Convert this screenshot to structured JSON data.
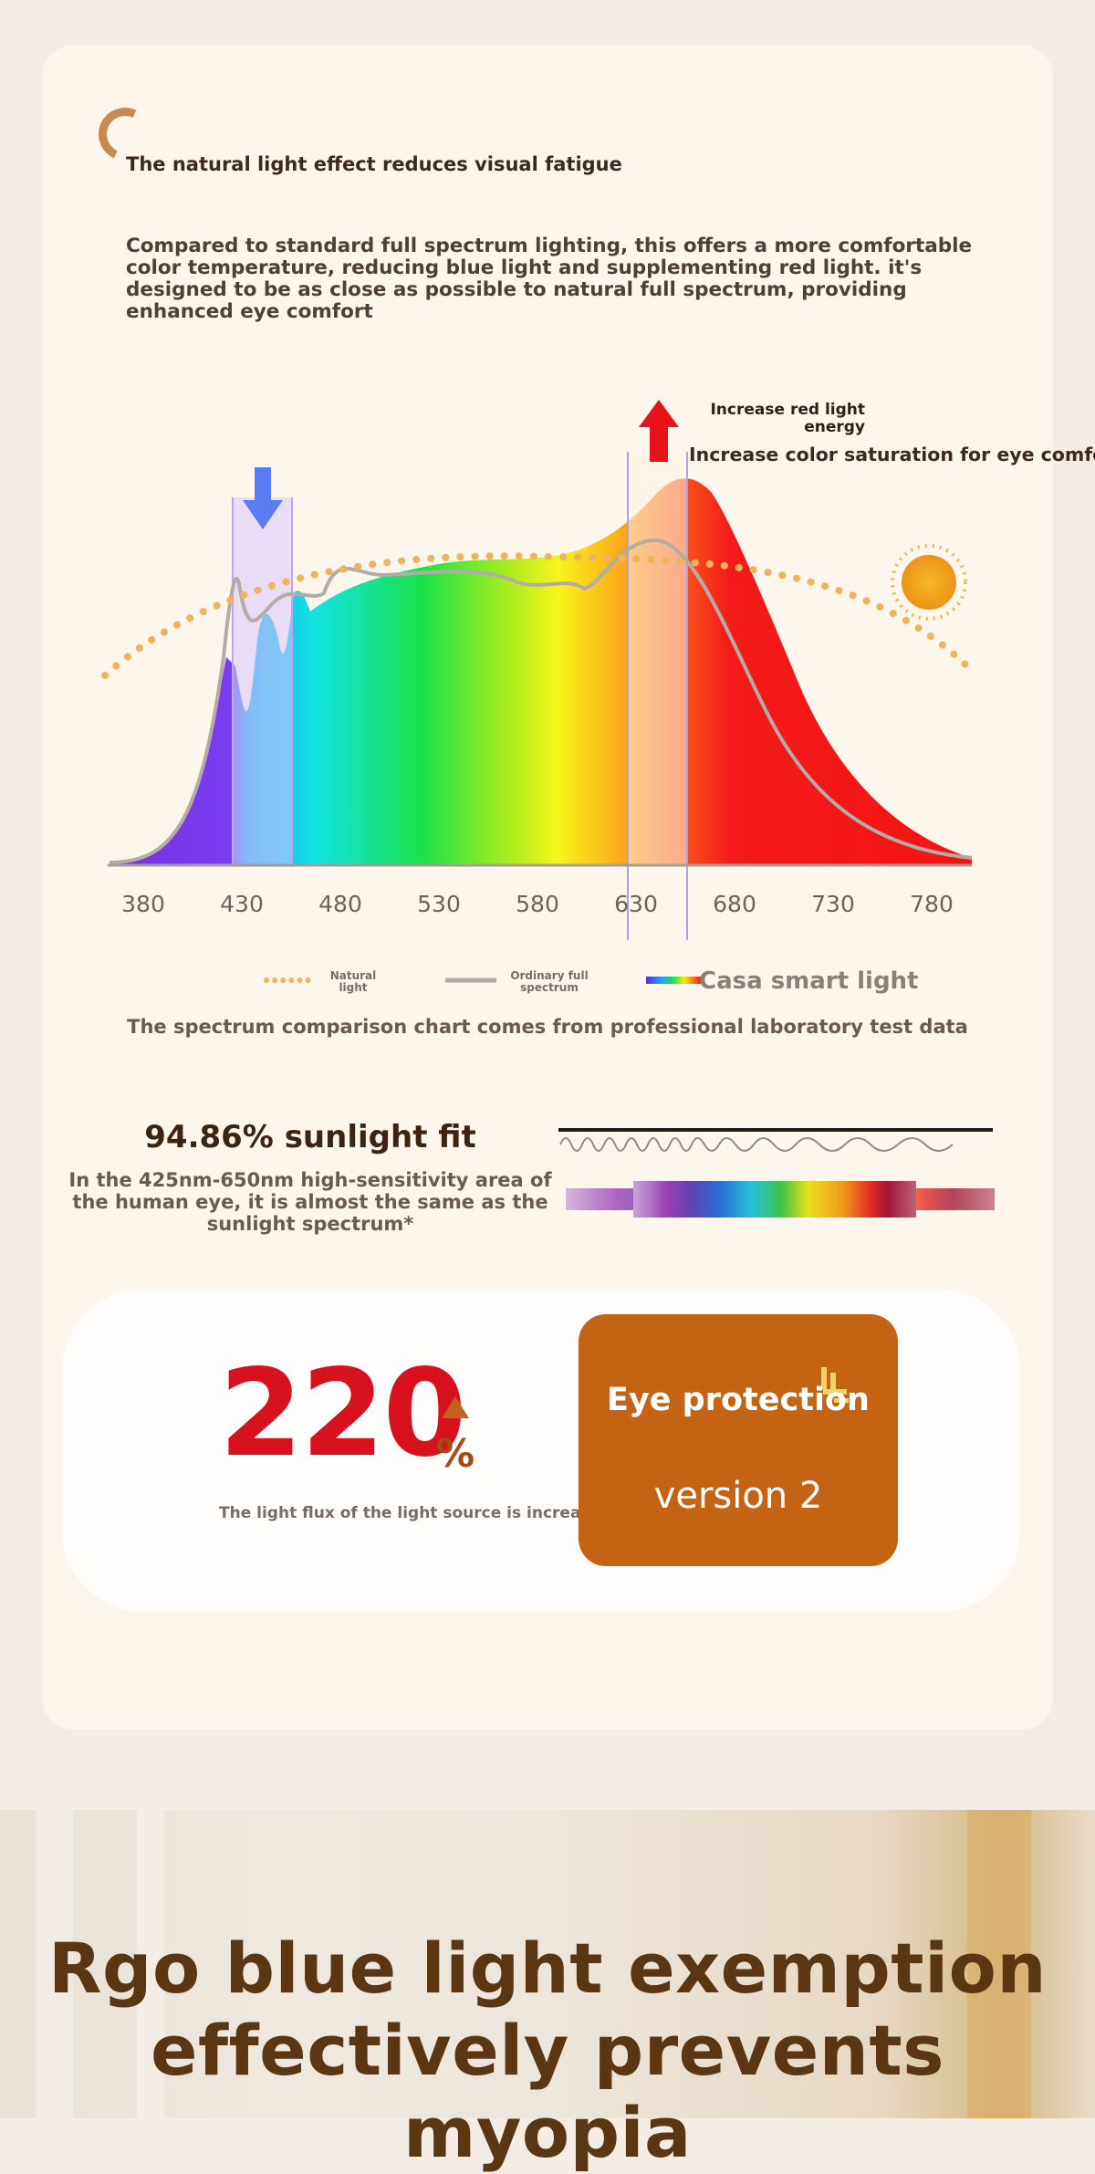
{
  "header": {
    "headline": "The natural light effect reduces visual fatigue",
    "subtext": "Compared to standard full spectrum lighting, this offers a more comfortable color temperature, reducing blue light and supplementing red light. it's designed to be as close as possible to natural full spectrum, providing enhanced eye comfort"
  },
  "chart_annotations": {
    "red_light": "Increase red light energy",
    "saturation": "Increase color saturation for eye comfort"
  },
  "chart_data": {
    "type": "area",
    "x_ticks": [
      "380",
      "430",
      "480",
      "530",
      "580",
      "630",
      "680",
      "730",
      "780"
    ],
    "legend": [
      {
        "label": "Natural light",
        "style": "dotted",
        "color": "#f0b35c"
      },
      {
        "label": "Ordinary full spectrum",
        "style": "solid",
        "color": "#b3aca6"
      },
      {
        "label": "Casa smart light",
        "style": "rainbow"
      }
    ],
    "highlight_bands": [
      {
        "center_nm": 430,
        "direction": "down",
        "color": "#5b7cf0"
      },
      {
        "center_nm": 630,
        "direction": "up",
        "color": "#e8121b"
      }
    ]
  },
  "caption": "The spectrum comparison chart comes from professional laboratory test data",
  "sunlight_fit": {
    "title": "94.86% sunlight fit",
    "description": "In the 425nm-650nm high-sensitivity area of the human eye, it is almost the same as the sunlight spectrum*"
  },
  "flux": {
    "value": "220",
    "unit": "%",
    "label": "The light flux of the light source is increased"
  },
  "badge": {
    "title": "Eye protection",
    "version": "version 2"
  },
  "footer": {
    "line1": "Rgo blue light exemption",
    "line2": "effectively prevents myopia"
  },
  "colors": {
    "accent_orange": "#c46314",
    "flux_red": "#d7121e",
    "heading_brown": "#5a3612"
  }
}
